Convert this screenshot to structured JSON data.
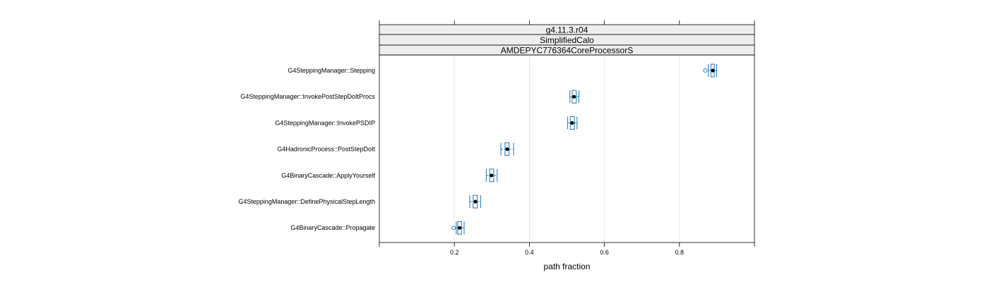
{
  "chart_data": {
    "type": "boxplot",
    "strips": [
      "g4.11.3.r04",
      "SimplifiedCalo",
      "AMDEPYC776364CoreProcessorS"
    ],
    "xlabel": "path fraction",
    "x_ticks": [
      0.2,
      0.4,
      0.6,
      0.8
    ],
    "xlim": [
      0.0,
      1.0
    ],
    "grid": "vertical",
    "colors": {
      "box": "#1f77b4",
      "median": "#000000",
      "strip_bg": "#eeeeee",
      "grid": "#e6e6e6"
    },
    "categories": [
      "G4SteppingManager::Stepping",
      "G4SteppingManager::InvokePostStepDoItProcs",
      "G4SteppingManager::InvokePSDIP",
      "G4HadronicProcess::PostStepDoIt",
      "G4BinaryCascade::ApplyYourself",
      "G4SteppingManager::DefinePhysicalStepLength",
      "G4BinaryCascade::Propagate"
    ],
    "boxes": [
      {
        "min": 0.877,
        "q1": 0.884,
        "median": 0.889,
        "q3": 0.893,
        "max": 0.899,
        "outliers": [
          0.869
        ]
      },
      {
        "min": 0.508,
        "q1": 0.514,
        "median": 0.519,
        "q3": 0.525,
        "max": 0.532,
        "outliers": []
      },
      {
        "min": 0.502,
        "q1": 0.509,
        "median": 0.514,
        "q3": 0.52,
        "max": 0.527,
        "outliers": []
      },
      {
        "min": 0.324,
        "q1": 0.335,
        "median": 0.341,
        "q3": 0.346,
        "max": 0.358,
        "outliers": []
      },
      {
        "min": 0.285,
        "q1": 0.294,
        "median": 0.299,
        "q3": 0.305,
        "max": 0.314,
        "outliers": []
      },
      {
        "min": 0.241,
        "q1": 0.25,
        "median": 0.256,
        "q3": 0.261,
        "max": 0.27,
        "outliers": []
      },
      {
        "min": 0.205,
        "q1": 0.209,
        "median": 0.214,
        "q3": 0.219,
        "max": 0.226,
        "outliers": [
          0.198
        ]
      }
    ]
  }
}
